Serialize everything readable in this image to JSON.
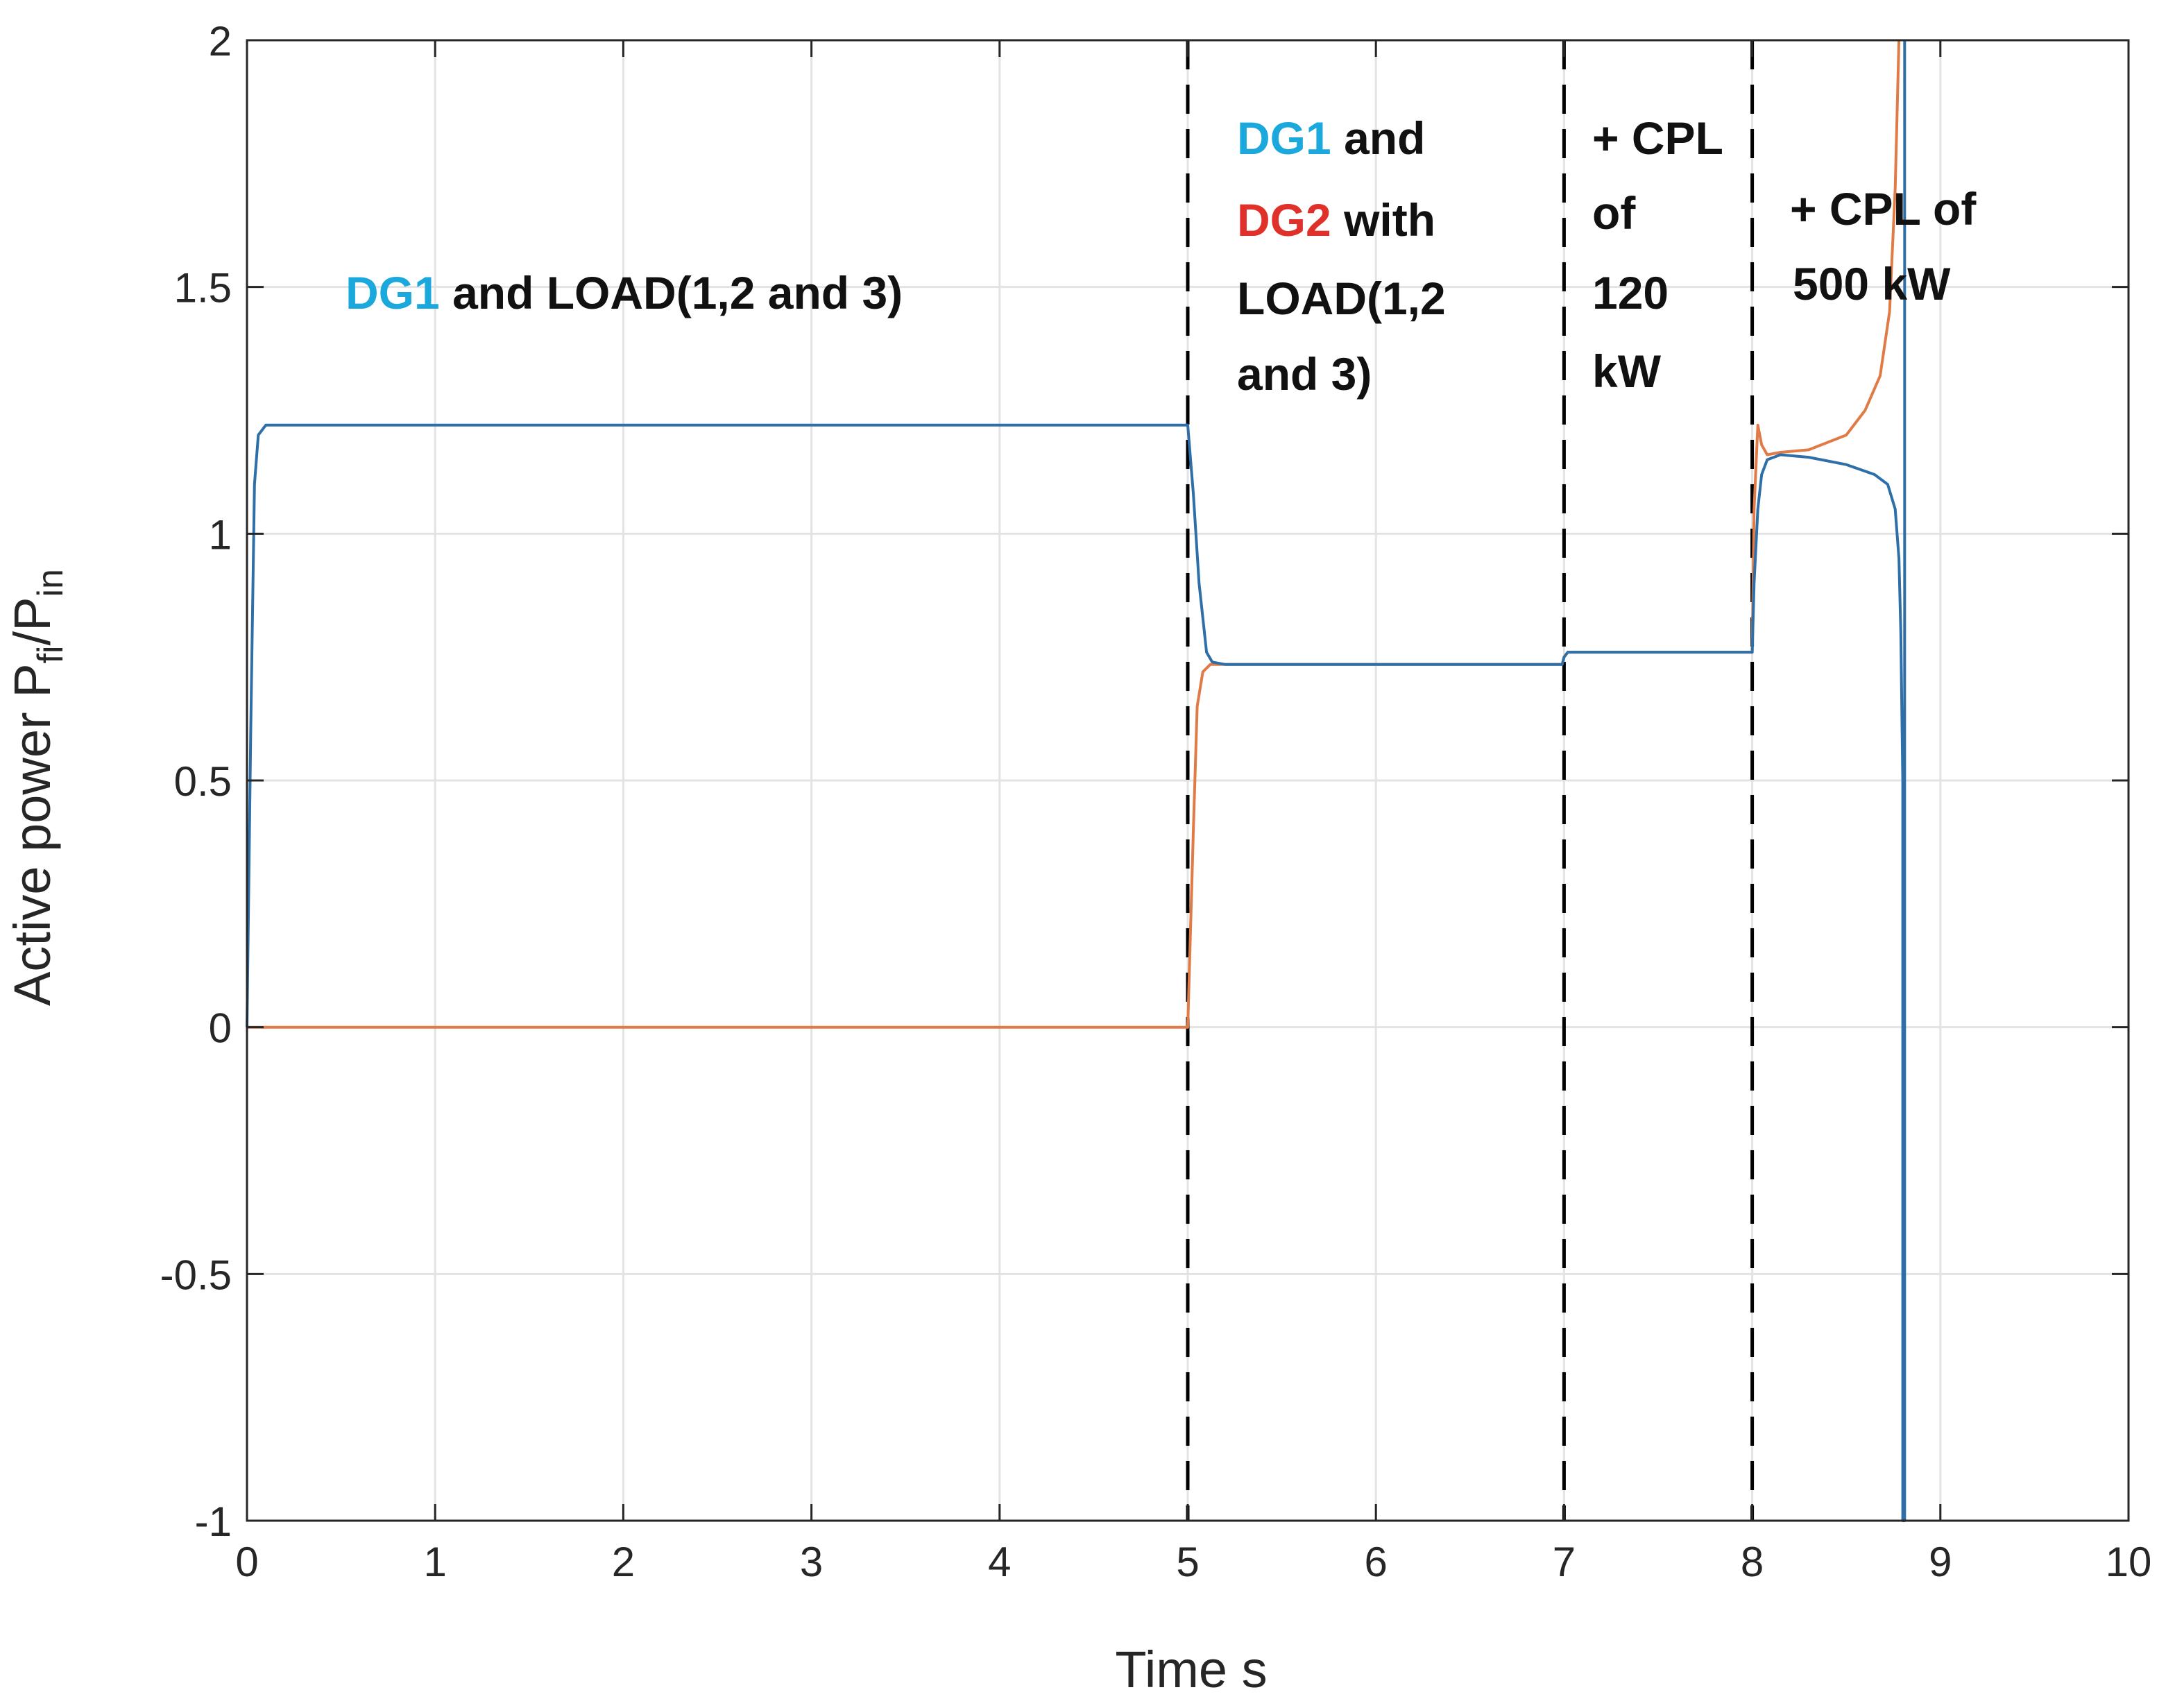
{
  "chart_data": {
    "type": "line",
    "title": "",
    "xlabel": "Time s",
    "ylabel_main": "Active power P",
    "ylabel_sub1": "fi",
    "ylabel_mid": "/P",
    "ylabel_sub2": "in",
    "xlim": [
      0,
      10
    ],
    "ylim": [
      -1,
      2
    ],
    "xticks": [
      0,
      1,
      2,
      3,
      4,
      5,
      6,
      7,
      8,
      9,
      10
    ],
    "xtick_labels": [
      "0",
      "1",
      "2",
      "3",
      "4",
      "5",
      "6",
      "7",
      "8",
      "9",
      "10"
    ],
    "yticks": [
      -1,
      -0.5,
      0,
      0.5,
      1,
      1.5,
      2
    ],
    "ytick_labels": [
      "-1",
      "-0.5",
      "0",
      "0.5",
      "1",
      "1.5",
      "2"
    ],
    "grid": true,
    "vlines": [
      5,
      7,
      8
    ],
    "colors": {
      "dg1_line": "#2f6fa8",
      "dg2_line": "#e07b48",
      "anno_blue": "#1ba9dd",
      "anno_red": "#e0302a",
      "grid": "#e3e3e3",
      "axis": "#262626"
    },
    "series": [
      {
        "name": "DG1",
        "x": [
          0,
          0.02,
          0.04,
          0.06,
          0.1,
          1,
          2,
          3,
          4,
          4.98,
          5.0,
          5.03,
          5.06,
          5.1,
          5.13,
          5.2,
          6,
          6.99,
          7.0,
          7.02,
          7.1,
          8,
          8.01,
          8.03,
          8.05,
          8.08,
          8.15,
          8.3,
          8.5,
          8.65,
          8.72,
          8.76,
          8.78,
          8.79,
          8.8,
          8.8,
          8.81,
          8.81
        ],
        "y": [
          0.0,
          0.6,
          1.1,
          1.2,
          1.22,
          1.22,
          1.22,
          1.22,
          1.22,
          1.22,
          1.22,
          1.08,
          0.9,
          0.76,
          0.74,
          0.735,
          0.735,
          0.735,
          0.75,
          0.76,
          0.76,
          0.76,
          0.9,
          1.05,
          1.12,
          1.15,
          1.16,
          1.155,
          1.14,
          1.12,
          1.1,
          1.05,
          0.95,
          0.8,
          0.5,
          -1.0,
          -1.0,
          2.0
        ]
      },
      {
        "name": "DG2",
        "x": [
          0,
          1,
          2,
          3,
          4,
          4.98,
          5.0,
          5.03,
          5.05,
          5.08,
          5.12,
          5.2,
          6,
          6.99,
          7.0,
          7.02,
          7.1,
          8,
          8.01,
          8.03,
          8.05,
          8.08,
          8.15,
          8.3,
          8.5,
          8.6,
          8.68,
          8.73,
          8.76,
          8.78
        ],
        "y": [
          0.0,
          0.0,
          0.0,
          0.0,
          0.0,
          0.0,
          0.0,
          0.4,
          0.65,
          0.72,
          0.735,
          0.735,
          0.735,
          0.735,
          0.75,
          0.76,
          0.76,
          0.76,
          1.05,
          1.22,
          1.18,
          1.16,
          1.165,
          1.17,
          1.2,
          1.25,
          1.32,
          1.45,
          1.7,
          2.0
        ]
      }
    ],
    "annotations": {
      "a1_dg1": "DG1",
      "a1_rest": "and LOAD(1,2 and 3)",
      "a2_dg1": "DG1",
      "a2_and": "and",
      "a2_dg2": "DG2",
      "a2_with": "with",
      "a2_load": "LOAD(1,2",
      "a2_and3": "and 3)",
      "a3_line1": "+ CPL",
      "a3_line2": "of",
      "a3_line3": "120",
      "a3_line4": "kW",
      "a4_line1": "+ CPL of",
      "a4_line2": "500 kW"
    }
  }
}
